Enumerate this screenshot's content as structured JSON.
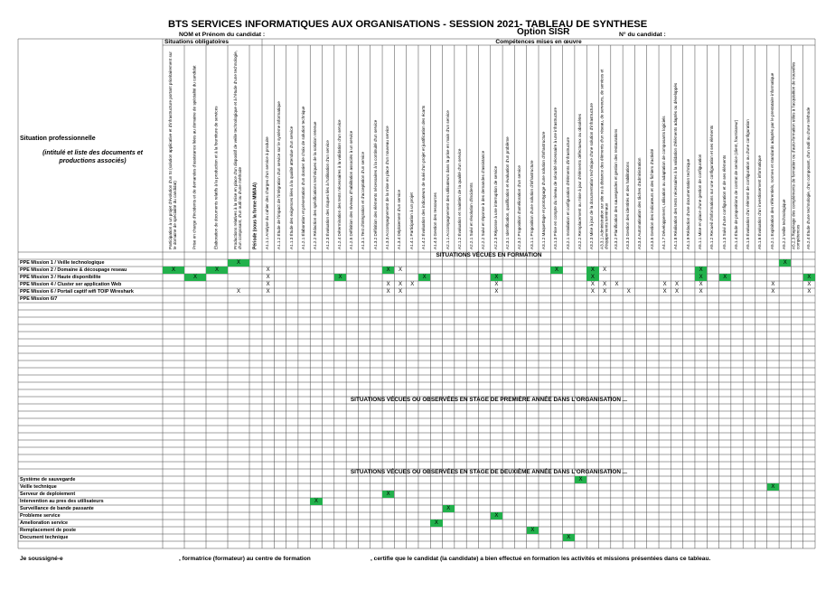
{
  "header": {
    "title": "BTS SERVICES INFORMATIQUES AUX ORGANISATIONS - SESSION 2021- TABLEAU DE SYNTHESE",
    "option": "Option SISR",
    "candidate_name": "NOM et Prénom du candidat :",
    "candidate_number": "N° du candidat :"
  },
  "table": {
    "group_obligatoires": "Situations obligatoires",
    "group_competences": "Compétences mises en œuvre",
    "left_title": "Situation professionnelle",
    "left_subtitle": "(intitulé et liste des documents et productions associés)",
    "highlight_color": "#22b14c",
    "columns": [
      "Participation à un projet d'évolution d'un SI (solution applicative et d'infrastructure portant prioritairement sur le domaine de spécialité du candidat)",
      "Prise en charge d'incidents et de demandes d'assistance liées au domaine de spécialité du candidat",
      "Élaboration de documents relatifs à la production et à la fourniture de services",
      "Productions relatives à la mise en place d'un dispositif de veille technologique et à l'étude d'une technologie, d'un composant, d'un outil ou d'une méthode",
      "Période (sous la forme MM/AA)",
      "A1.1.1 Analyse du cahier des charges d'un service à produire",
      "A1.1.2 Étude de l'impact de l'intégration d'un service sur le système informatique",
      "A1.1.3 Étude des exigences liées à la qualité attendue d'un service",
      "A1.2.1 Élaboration et présentation d'un dossier de choix de solution technique",
      "A1.2.2 Rédaction des spécifications techniques de la solution retenue",
      "A1.2.3 Évaluation des risques liés à l'utilisation d'un service",
      "A1.2.4 Détermination des tests nécessaires à la validation d'un service",
      "A1.2.5 Définition des niveaux d'habilitation associés à un service",
      "A1.3.1 Test d'intégration et d'acceptation d'un service",
      "A1.3.2 Définition des éléments nécessaires à la continuité d'un service",
      "A1.3.3 Accompagnement de la mise en place d'un nouveau service",
      "A1.3.4 Déploiement d'un service",
      "A1.4.1 Participation à un projet",
      "A1.4.2 Évaluation des indicateurs de suivi d'un projet et justification des écarts",
      "A1.4.3 Gestion des ressources",
      "A2.1.1 Accompagnement des utilisateurs dans la prise en main d'un service",
      "A2.1.2 Évaluation et maintien de la qualité d'un service",
      "A2.2.1 Suivi et résolution d'incidents",
      "A2.2.2 Suivi et réponse à des demandes d'assistance",
      "A2.2.3 Réponse à une interruption de service",
      "A2.3.1 Identification, qualification et évaluation d'un problème",
      "A2.3.2 Proposition d'amélioration d'un service",
      "A3.1.1 Proposition d'une solution d'infrastructure",
      "A3.1.2 Maquettage et prototypage d'une solution d'infrastructure",
      "A3.1.3 Prise en compte du niveau de sécurité nécessaire à une infrastructure",
      "A3.2.1 Installation et configuration d'éléments d'infrastructure",
      "A3.2.2 Remplacement ou mise à jour d'éléments défectueux ou obsolètes",
      "A3.2.3 Mise à jour de la documentation technique d'une solution d'infrastructure",
      "A3.3.1 Administration sur site ou à distance des éléments d'un réseau, de serveurs, de services et d'équipements terminaux",
      "A3.3.2 Planification des sauvegardes et gestion des restaurations",
      "A3.3.3 Gestion des identités et des habilitations",
      "A3.3.4 Automatisation des tâches d'administration",
      "A3.3.5 Gestion des indicateurs et des fichiers d'activité",
      "A4.1.7 Développement, utilisation ou adaptation de composants logiciels",
      "A4.1.8 Réalisation des tests nécessaires à la validation d'éléments adaptés ou développés",
      "A4.1.9 Rédaction d'une documentation technique",
      "A5.1.1 Mise en place d'une gestion de configuration",
      "A5.1.2 Recueil d'informations sur une configuration et ses éléments",
      "A5.1.3 Suivi d'une configuration et de ses éléments",
      "A5.1.4 Étude de propositions de contrat de service (client, fournisseur)",
      "A5.1.5 Évaluation d'un élément de configuration ou d'une configuration",
      "A5.1.6 Évaluation d'un investissement informatique",
      "A5.2.1 Exploitation des référentiels, normes et standards adoptés par le prestataire informatique",
      "A5.2.2 Veille technologique",
      "A5.2.3 Repérage des compléments de formation ou d'auto-formation utiles à l'acquisition de nouvelles compétences",
      "A5.2.4 Étude d'une technologie, d'un composant, d'un outil ou d'une méthode"
    ],
    "sections": [
      {
        "title": "SITUATIONS VÉCUES EN FORMATION",
        "rows": [
          {
            "label": "PPE Mission 1 / Veille technologique",
            "marks": [
              {
                "col": 3,
                "text": "X",
                "green": true
              },
              {
                "col": 48,
                "text": "X",
                "green": true
              }
            ]
          },
          {
            "label": "PPE Mission 2 / Domaine & découpage reseau",
            "marks": [
              {
                "col": 0,
                "text": "X",
                "green": true
              },
              {
                "col": 2,
                "text": "X",
                "green": true
              },
              {
                "col": 5,
                "text": "X",
                "green": false
              },
              {
                "col": 15,
                "text": "X",
                "green": true
              },
              {
                "col": 16,
                "text": "X",
                "green": false
              },
              {
                "col": 29,
                "text": "X",
                "green": true
              },
              {
                "col": 32,
                "text": "X",
                "green": true
              },
              {
                "col": 33,
                "text": "X",
                "green": false
              },
              {
                "col": 41,
                "text": "X",
                "green": true
              }
            ]
          },
          {
            "label": "PPE Mission 3 / Haute disponibilite",
            "marks": [
              {
                "col": 1,
                "text": "X",
                "green": true
              },
              {
                "col": 5,
                "text": "X",
                "green": false
              },
              {
                "col": 11,
                "text": "X",
                "green": true
              },
              {
                "col": 18,
                "text": "X",
                "green": true
              },
              {
                "col": 24,
                "text": "X",
                "green": true
              },
              {
                "col": 32,
                "text": "X",
                "green": true
              },
              {
                "col": 41,
                "text": "X",
                "green": true
              },
              {
                "col": 43,
                "text": "X",
                "green": true
              },
              {
                "col": 50,
                "text": "X",
                "green": true
              }
            ]
          },
          {
            "label": "PPE Mission 4 / Cluster ser application Web",
            "marks": [
              {
                "col": 5,
                "text": "X",
                "green": false
              },
              {
                "col": 15,
                "text": "X",
                "green": false
              },
              {
                "col": 16,
                "text": "X",
                "green": false
              },
              {
                "col": 17,
                "text": "X",
                "green": false
              },
              {
                "col": 24,
                "text": "X",
                "green": false
              },
              {
                "col": 32,
                "text": "X",
                "green": false
              },
              {
                "col": 33,
                "text": "X",
                "green": false
              },
              {
                "col": 34,
                "text": "X",
                "green": false
              },
              {
                "col": 38,
                "text": "X",
                "green": false
              },
              {
                "col": 39,
                "text": "X",
                "green": false
              },
              {
                "col": 41,
                "text": "X",
                "green": false
              },
              {
                "col": 47,
                "text": "X",
                "green": false
              },
              {
                "col": 50,
                "text": "X",
                "green": false
              }
            ]
          },
          {
            "label": "PPE Mission 6 / Portail captif wifi TOIP Wireshark",
            "marks": [
              {
                "col": 3,
                "text": "X",
                "green": false
              },
              {
                "col": 5,
                "text": "X",
                "green": false
              },
              {
                "col": 15,
                "text": "X",
                "green": false
              },
              {
                "col": 16,
                "text": "X",
                "green": false
              },
              {
                "col": 24,
                "text": "X",
                "green": false
              },
              {
                "col": 32,
                "text": "X",
                "green": false
              },
              {
                "col": 33,
                "text": "X",
                "green": false
              },
              {
                "col": 35,
                "text": "X",
                "green": false
              },
              {
                "col": 38,
                "text": "X",
                "green": false
              },
              {
                "col": 39,
                "text": "X",
                "green": false
              },
              {
                "col": 41,
                "text": "X",
                "green": false
              },
              {
                "col": 47,
                "text": "X",
                "green": false
              },
              {
                "col": 50,
                "text": "X",
                "green": false
              }
            ]
          },
          {
            "label": "PPE Mission 6/7",
            "marks": []
          }
        ]
      },
      {
        "title": "SITUATIONS VÉCUES OU OBSERVÉES EN STAGE DE PREMIÈRE ANNÉE DANS L'ORGANISATION ...",
        "rows": []
      },
      {
        "title": "SITUATIONS VÉCUES OU OBSERVÉES EN STAGE DE DEUXIÈME ANNÉE DANS L'ORGANISATION ...",
        "rows": [
          {
            "label": "Système de sauvegarde",
            "marks": [
              {
                "col": 31,
                "text": "X",
                "green": true
              }
            ]
          },
          {
            "label": "Veille technique",
            "marks": [
              {
                "col": 47,
                "text": "X",
                "green": true
              }
            ]
          },
          {
            "label": "Serveur de deploiement",
            "marks": [
              {
                "col": 15,
                "text": "X",
                "green": true
              }
            ]
          },
          {
            "label": "Intervention au pres des utilisateurs",
            "marks": [
              {
                "col": 9,
                "text": "X",
                "green": true
              }
            ]
          },
          {
            "label": "Surveillance de bande passante",
            "marks": [
              {
                "col": 20,
                "text": "X",
                "green": true
              }
            ]
          },
          {
            "label": "Probleme service",
            "marks": [
              {
                "col": 24,
                "text": "X",
                "green": true
              }
            ]
          },
          {
            "label": "Amelioration service",
            "marks": [
              {
                "col": 19,
                "text": "X",
                "green": true
              }
            ]
          },
          {
            "label": "Remplacement de poste",
            "marks": [
              {
                "col": 27,
                "text": "X",
                "green": true
              }
            ]
          },
          {
            "label": "Document technique",
            "marks": [
              {
                "col": 30,
                "text": "X",
                "green": true
              }
            ]
          }
        ]
      }
    ]
  },
  "footer": {
    "part1": "Je soussigné-e",
    "part2": ", formatrice (formateur) au centre de formation",
    "part3": ", certifie que le candidat (la candidate) a bien effectué en formation les activités et missions présentées dans ce tableau."
  }
}
